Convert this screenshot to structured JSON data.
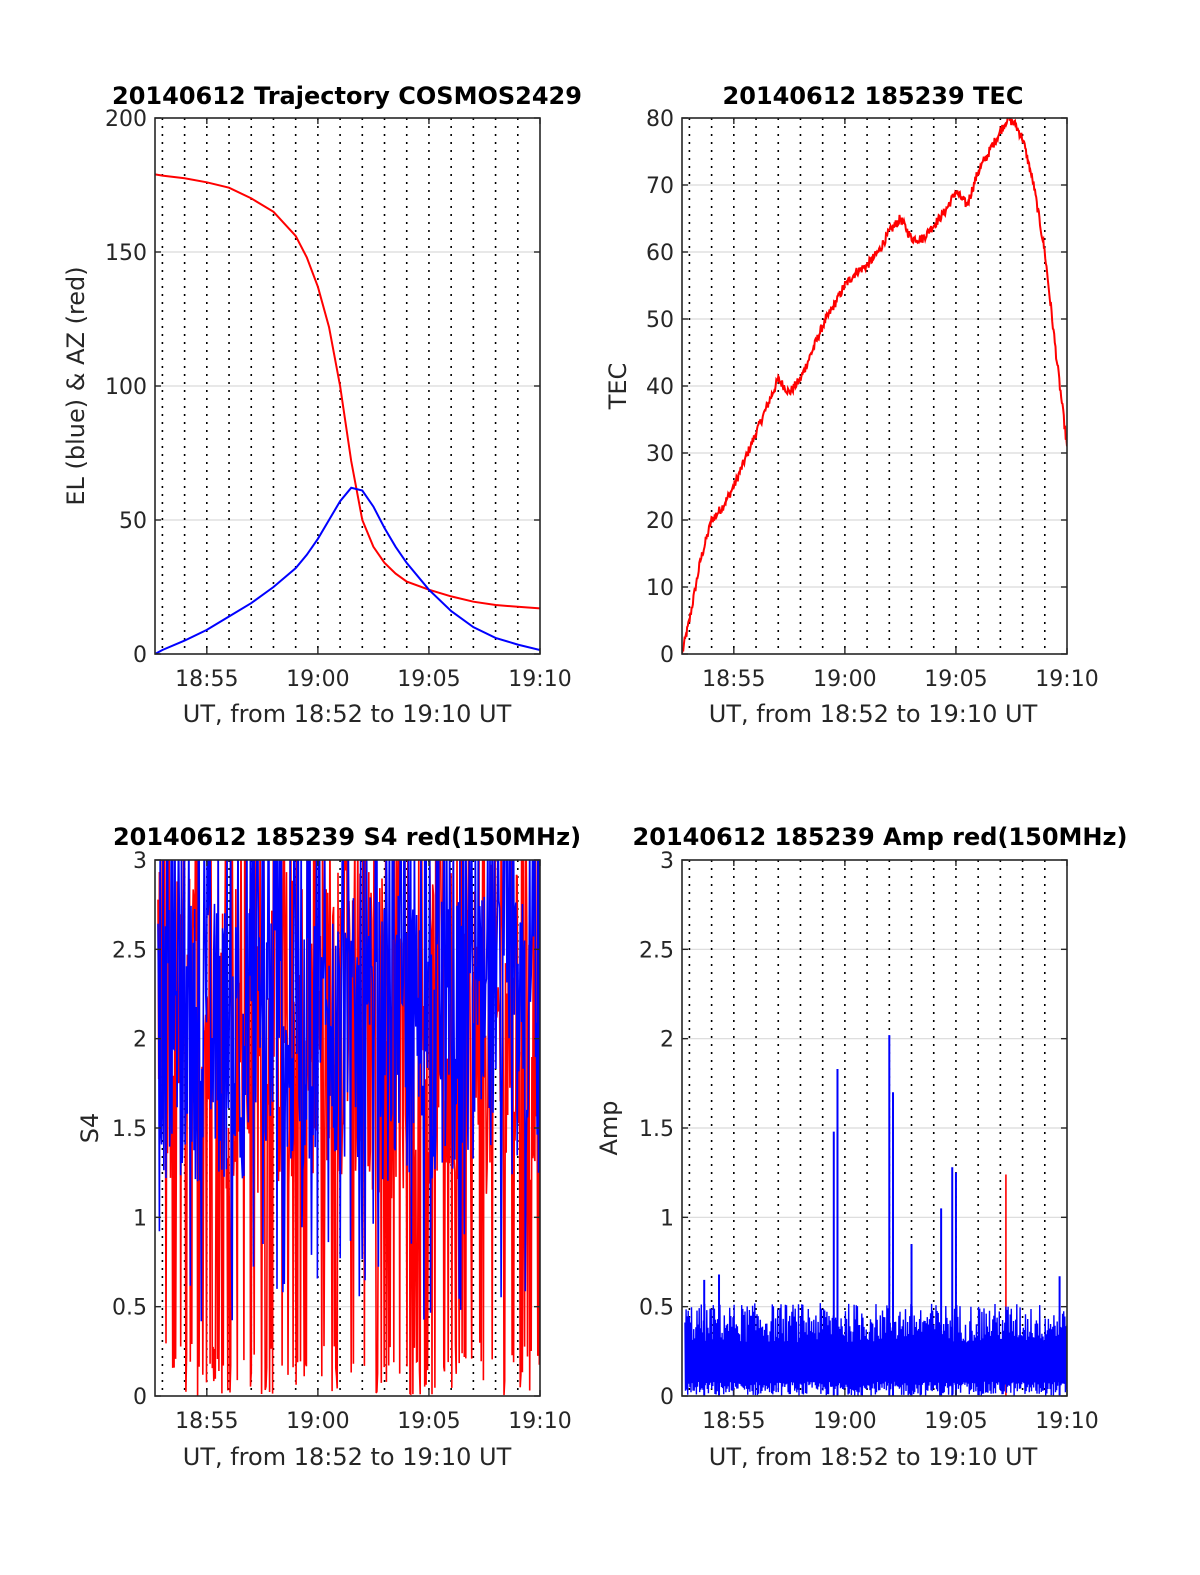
{
  "colors": {
    "red": "#ff0000",
    "blue": "#0000ff",
    "axis": "#262626",
    "grid": "#d9d9d9"
  },
  "chart_data": [
    {
      "id": "traj",
      "type": "line",
      "title": "20140612 Trajectory COSMOS2429",
      "xlabel": "UT, from 18:52 to 19:10 UT",
      "ylabel": "EL (blue) & AZ (red)",
      "xlim": [
        "18:52:40",
        "19:10:00"
      ],
      "ylim": [
        0,
        200
      ],
      "x_ticks": [
        "18:55",
        "19:00",
        "19:05",
        "19:10"
      ],
      "y_ticks": [
        "0",
        "50",
        "100",
        "150",
        "200"
      ],
      "y_tick_values": [
        0,
        50,
        100,
        150,
        200
      ],
      "dotted_grid_x": [
        "18:53",
        "18:54",
        "18:55",
        "18:56",
        "18:57",
        "18:58",
        "18:59",
        "19:00",
        "19:01",
        "19:02",
        "19:03",
        "19:04",
        "19:05",
        "19:06",
        "19:07",
        "19:08",
        "19:09"
      ],
      "series": [
        {
          "color": "red",
          "x": [
            "18:52:40",
            "18:53:00",
            "18:54:00",
            "18:55:00",
            "18:56:00",
            "18:57:00",
            "18:58:00",
            "18:59:00",
            "18:59:30",
            "19:00:00",
            "19:00:30",
            "19:01:00",
            "19:01:30",
            "19:02:00",
            "19:02:30",
            "19:03:00",
            "19:03:30",
            "19:04:00",
            "19:05:00",
            "19:06:00",
            "19:07:00",
            "19:08:00",
            "19:09:00",
            "19:10:00"
          ],
          "y": [
            179,
            178.5,
            177.5,
            176,
            174,
            170,
            165,
            156,
            148,
            137,
            122,
            100,
            72,
            50,
            40,
            34,
            30,
            27,
            24,
            21.5,
            19.5,
            18.3,
            17.6,
            17
          ]
        },
        {
          "color": "blue",
          "x": [
            "18:52:40",
            "18:53:00",
            "18:54:00",
            "18:55:00",
            "18:56:00",
            "18:57:00",
            "18:58:00",
            "18:59:00",
            "18:59:30",
            "19:00:00",
            "19:00:30",
            "19:01:00",
            "19:01:30",
            "19:02:00",
            "19:02:30",
            "19:03:00",
            "19:03:30",
            "19:04:00",
            "19:05:00",
            "19:06:00",
            "19:07:00",
            "19:08:00",
            "19:09:00",
            "19:10:00"
          ],
          "y": [
            0,
            1.5,
            5,
            9,
            14,
            19,
            25,
            32,
            37,
            43,
            50,
            57,
            62,
            61,
            55,
            47,
            40,
            34,
            24,
            16,
            10,
            6,
            3.5,
            1.5
          ]
        }
      ]
    },
    {
      "id": "tec",
      "type": "line",
      "title": "20140612 185239 TEC",
      "xlabel": "UT, from 18:52 to 19:10 UT",
      "ylabel": "TEC",
      "xlim": [
        "18:52:40",
        "19:10:00"
      ],
      "ylim": [
        0,
        80
      ],
      "x_ticks": [
        "18:55",
        "19:00",
        "19:05",
        "19:10"
      ],
      "y_ticks": [
        "0",
        "10",
        "20",
        "30",
        "40",
        "50",
        "60",
        "70",
        "80"
      ],
      "y_tick_values": [
        0,
        10,
        20,
        30,
        40,
        50,
        60,
        70,
        80
      ],
      "dotted_grid_x": [
        "18:53",
        "18:54",
        "18:55",
        "18:56",
        "18:57",
        "18:58",
        "18:59",
        "19:00",
        "19:01",
        "19:02",
        "19:03",
        "19:04",
        "19:05",
        "19:06",
        "19:07",
        "19:08",
        "19:09"
      ],
      "series": [
        {
          "color": "red",
          "x_start": "18:52:40",
          "x_end": "19:10:00",
          "x": [
            "18:52:40",
            "18:53:00",
            "18:53:30",
            "18:54:00",
            "18:54:30",
            "18:55:00",
            "18:55:30",
            "18:56:00",
            "18:56:30",
            "18:57:00",
            "18:57:30",
            "18:58:00",
            "18:58:30",
            "18:59:00",
            "18:59:30",
            "19:00:00",
            "19:00:30",
            "19:01:00",
            "19:01:30",
            "19:02:00",
            "19:02:30",
            "19:03:00",
            "19:03:30",
            "19:04:00",
            "19:04:30",
            "19:05:00",
            "19:05:30",
            "19:06:00",
            "19:06:30",
            "19:07:00",
            "19:07:20",
            "19:07:40",
            "19:08:00",
            "19:08:30",
            "19:09:00",
            "19:09:30",
            "19:10:00"
          ],
          "y": [
            0,
            5,
            14,
            20,
            22,
            25,
            29,
            33,
            37,
            41,
            39,
            41,
            45,
            49,
            52,
            55,
            57,
            58,
            60,
            63,
            65,
            62,
            62,
            64,
            66,
            69,
            67,
            72,
            75,
            78,
            80,
            79,
            77,
            70,
            60,
            45,
            31
          ]
        }
      ]
    },
    {
      "id": "s4",
      "type": "line",
      "title": "20140612 185239 S4 red(150MHz)",
      "xlabel": "UT, from 18:52 to 19:10 UT",
      "ylabel": "S4",
      "xlim": [
        "18:52:40",
        "19:10:00"
      ],
      "ylim": [
        0,
        3
      ],
      "x_ticks": [
        "18:55",
        "19:00",
        "19:05",
        "19:10"
      ],
      "y_ticks": [
        "0",
        "0.5",
        "1",
        "1.5",
        "2",
        "2.5",
        "3"
      ],
      "y_tick_values": [
        0,
        0.5,
        1,
        1.5,
        2,
        2.5,
        3
      ],
      "dotted_grid_x": [
        "18:53",
        "18:54",
        "18:55",
        "18:56",
        "18:57",
        "18:58",
        "18:59",
        "19:00",
        "19:01",
        "19:02",
        "19:03",
        "19:04",
        "19:05",
        "19:06",
        "19:07",
        "19:08",
        "19:09"
      ],
      "series": [
        {
          "color": "red",
          "style": "noisy",
          "range": [
            0,
            3
          ],
          "note_level": 1.8
        },
        {
          "color": "blue",
          "style": "noisy",
          "range": [
            0.4,
            3
          ],
          "note_level": 1.9
        }
      ]
    },
    {
      "id": "amp",
      "type": "line",
      "title": "20140612 185239 Amp red(150MHz)",
      "xlabel": "UT, from 18:52 to 19:10 UT",
      "ylabel": "Amp",
      "xlim": [
        "18:52:40",
        "19:10:00"
      ],
      "ylim": [
        0,
        3
      ],
      "x_ticks": [
        "18:55",
        "19:00",
        "19:05",
        "19:10"
      ],
      "y_ticks": [
        "0",
        "0.5",
        "1",
        "1.5",
        "2",
        "2.5",
        "3"
      ],
      "y_tick_values": [
        0,
        0.5,
        1,
        1.5,
        2,
        2.5,
        3
      ],
      "dotted_grid_x": [
        "18:53",
        "18:54",
        "18:55",
        "18:56",
        "18:57",
        "18:58",
        "18:59",
        "19:00",
        "19:01",
        "19:02",
        "19:03",
        "19:04",
        "19:05",
        "19:06",
        "19:07",
        "19:08",
        "19:09"
      ],
      "series": [
        {
          "color": "red",
          "spikes": [
            {
              "x": "19:07:15",
              "y": 1.24
            }
          ]
        },
        {
          "color": "blue",
          "baseline": 0.3,
          "spikes": [
            {
              "x": "18:53:40",
              "y": 0.65
            },
            {
              "x": "18:54:20",
              "y": 0.68
            },
            {
              "x": "18:59:30",
              "y": 1.48
            },
            {
              "x": "18:59:40",
              "y": 1.83
            },
            {
              "x": "19:02:00",
              "y": 2.02
            },
            {
              "x": "19:02:10",
              "y": 1.7
            },
            {
              "x": "19:03:00",
              "y": 0.85
            },
            {
              "x": "19:04:20",
              "y": 1.05
            },
            {
              "x": "19:04:50",
              "y": 1.28
            },
            {
              "x": "19:05:00",
              "y": 1.25
            },
            {
              "x": "19:09:40",
              "y": 0.67
            }
          ]
        }
      ]
    }
  ]
}
